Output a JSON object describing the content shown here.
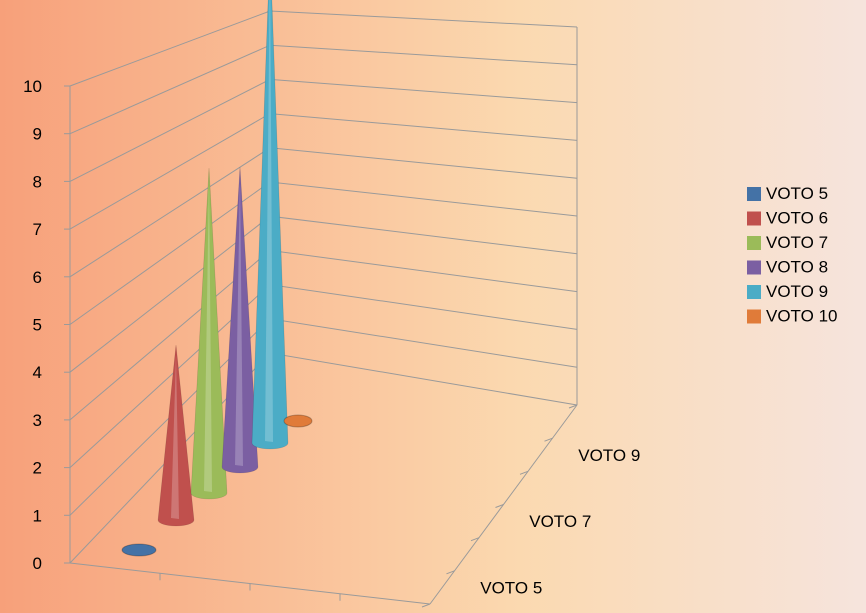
{
  "chart_data": {
    "type": "bar",
    "shape": "cone",
    "three_d": true,
    "categories": [
      "VOTO 5",
      "VOTO 6",
      "VOTO 7",
      "VOTO 8",
      "VOTO 9",
      "VOTO 10"
    ],
    "values": [
      0,
      3.5,
      6.5,
      6,
      9.9,
      0
    ],
    "depth_tick_labels": [
      "VOTO 5",
      "VOTO 7",
      "VOTO 9"
    ],
    "ylim": [
      0,
      10
    ],
    "yticks": [
      0,
      1,
      2,
      3,
      4,
      5,
      6,
      7,
      8,
      9,
      10
    ],
    "grid": true,
    "legend": "right",
    "title": "",
    "xlabel": "",
    "ylabel": "",
    "series_colors": [
      "#4472a6",
      "#c0504d",
      "#9bbb59",
      "#7b5fa2",
      "#4bacc6",
      "#e07b39"
    ],
    "background": [
      "#f7a07a",
      "#fbd9b0",
      "#f6e4dd"
    ]
  }
}
